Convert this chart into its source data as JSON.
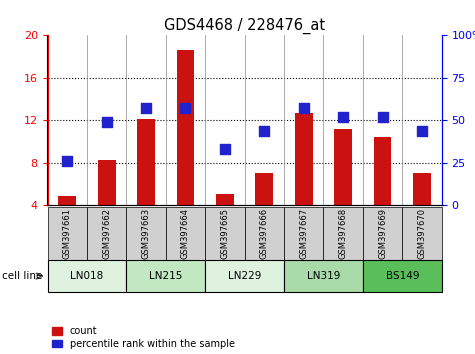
{
  "title": "GDS4468 / 228476_at",
  "samples": [
    "GSM397661",
    "GSM397662",
    "GSM397663",
    "GSM397664",
    "GSM397665",
    "GSM397666",
    "GSM397667",
    "GSM397668",
    "GSM397669",
    "GSM397670"
  ],
  "count_values": [
    4.9,
    8.3,
    12.1,
    18.6,
    5.1,
    7.0,
    12.7,
    11.2,
    10.4,
    7.0
  ],
  "percentile_values": [
    26,
    49,
    57,
    57,
    33,
    44,
    57,
    52,
    52,
    44
  ],
  "cell_lines": [
    {
      "label": "LN018",
      "start": 0,
      "end": 2,
      "color": "#dff2df"
    },
    {
      "label": "LN215",
      "start": 2,
      "end": 4,
      "color": "#c2e8c2"
    },
    {
      "label": "LN229",
      "start": 4,
      "end": 6,
      "color": "#dff2df"
    },
    {
      "label": "LN319",
      "start": 6,
      "end": 8,
      "color": "#a8dba8"
    },
    {
      "label": "BS149",
      "start": 8,
      "end": 10,
      "color": "#5abf5a"
    }
  ],
  "ylim_left": [
    4,
    20
  ],
  "ylim_right": [
    0,
    100
  ],
  "yticks_left": [
    4,
    8,
    12,
    16,
    20
  ],
  "yticks_right": [
    0,
    25,
    50,
    75,
    100
  ],
  "ytick_labels_right": [
    "0",
    "25",
    "50",
    "75",
    "100%"
  ],
  "hgrid_at": [
    8,
    12,
    16
  ],
  "bar_color": "#cc1111",
  "dot_color": "#2222cc",
  "bar_width": 0.45,
  "dot_size": 45,
  "title_fontsize": 10.5,
  "sample_box_color": "#d0d0d0",
  "cell_line_label_text": "cell line",
  "legend_labels": [
    "count",
    "percentile rank within the sample"
  ],
  "right_axis_tick_labels": [
    "0",
    "25",
    "50",
    "75",
    "100%"
  ]
}
